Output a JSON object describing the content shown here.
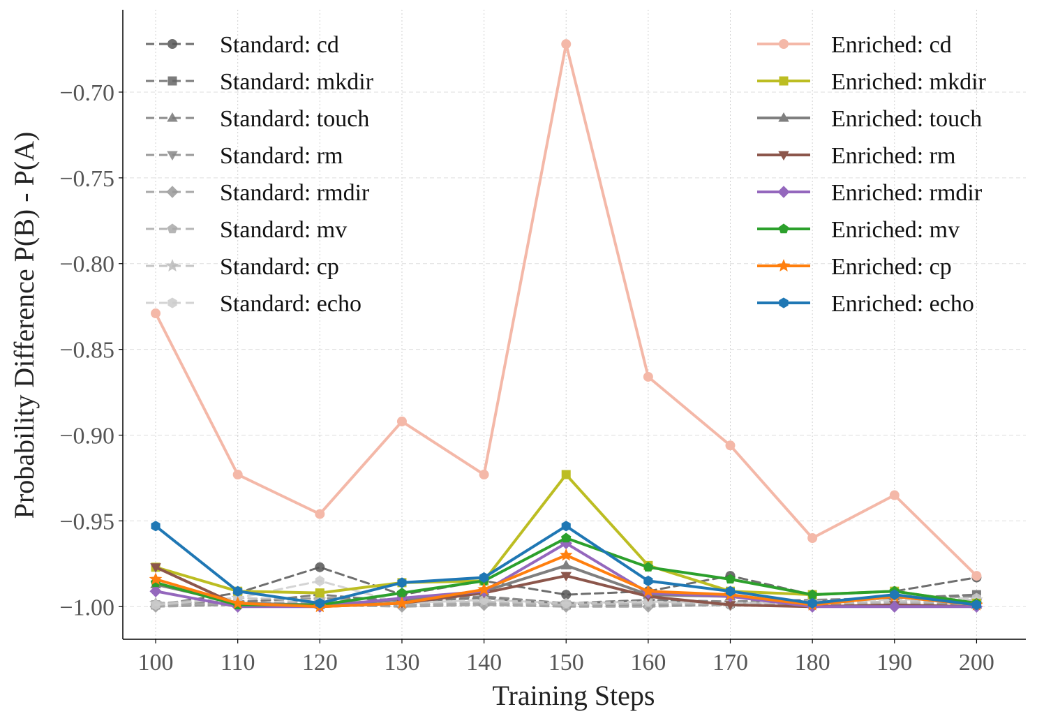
{
  "chart_data": {
    "type": "line",
    "xlabel": "Training Steps",
    "ylabel": "Probability Difference P(B) - P(A)",
    "x": [
      100,
      110,
      120,
      130,
      140,
      150,
      160,
      170,
      180,
      190,
      200
    ],
    "xticks": [
      "100",
      "110",
      "120",
      "130",
      "140",
      "150",
      "160",
      "170",
      "180",
      "190",
      "200"
    ],
    "yticks": [
      "−0.70",
      "−0.75",
      "−0.80",
      "−0.85",
      "−0.90",
      "−0.95",
      "−1.00"
    ],
    "ytick_values": [
      -0.7,
      -0.75,
      -0.8,
      -0.85,
      -0.9,
      -0.95,
      -1.0
    ],
    "xlim": [
      96,
      206
    ],
    "ylim": [
      -1.019,
      -0.652
    ],
    "grid": true,
    "legend_placement": [
      "top-left",
      "top-right"
    ],
    "series": [
      {
        "name": "Standard: cd",
        "group": "standard",
        "color": "#555555",
        "dash": "dashed",
        "marker": "circle",
        "values": [
          -0.999,
          -0.992,
          -0.977,
          -0.993,
          -0.985,
          -0.993,
          -0.991,
          -0.982,
          -0.993,
          -0.991,
          -0.983
        ]
      },
      {
        "name": "Standard: mkdir",
        "group": "standard",
        "color": "#666666",
        "dash": "dashed",
        "marker": "square",
        "values": [
          -0.999,
          -0.998,
          -0.993,
          -0.997,
          -0.995,
          -0.999,
          -0.996,
          -0.998,
          -0.997,
          -0.995,
          -0.993
        ]
      },
      {
        "name": "Standard: touch",
        "group": "standard",
        "color": "#777777",
        "dash": "dashed",
        "marker": "triangle-up",
        "values": [
          -0.998,
          -0.997,
          -0.995,
          -0.996,
          -0.994,
          -0.998,
          -0.996,
          -0.997,
          -0.996,
          -0.995,
          -0.994
        ]
      },
      {
        "name": "Standard: rm",
        "group": "standard",
        "color": "#888888",
        "dash": "dashed",
        "marker": "triangle-down",
        "values": [
          -0.999,
          -0.999,
          -0.998,
          -0.999,
          -0.998,
          -0.999,
          -0.999,
          -0.999,
          -0.999,
          -0.999,
          -0.998
        ]
      },
      {
        "name": "Standard: rmdir",
        "group": "standard",
        "color": "#999999",
        "dash": "dashed",
        "marker": "diamond",
        "values": [
          -1.0,
          -0.999,
          -0.999,
          -1.0,
          -0.999,
          -1.0,
          -1.0,
          -0.999,
          -0.999,
          -0.999,
          -0.998
        ]
      },
      {
        "name": "Standard: mv",
        "group": "standard",
        "color": "#aaaaaa",
        "dash": "dashed",
        "marker": "pentagon",
        "values": [
          -0.999,
          -0.998,
          -0.997,
          -0.999,
          -0.998,
          -0.999,
          -0.998,
          -0.999,
          -0.998,
          -0.998,
          -0.997
        ]
      },
      {
        "name": "Standard: cp",
        "group": "standard",
        "color": "#bbbbbb",
        "dash": "dashed",
        "marker": "star",
        "values": [
          -0.998,
          -0.995,
          -0.996,
          -0.998,
          -0.997,
          -0.999,
          -0.998,
          -0.998,
          -0.998,
          -0.997,
          -0.996
        ]
      },
      {
        "name": "Standard: echo",
        "group": "standard",
        "color": "#cccccc",
        "dash": "dashed",
        "marker": "hexagon",
        "values": [
          -0.999,
          -0.995,
          -0.985,
          -0.998,
          -0.996,
          -0.998,
          -0.997,
          -0.998,
          -0.997,
          -0.996,
          -0.995
        ]
      },
      {
        "name": "Enriched: cd",
        "group": "enriched",
        "color": "#f4b8a8",
        "dash": "solid",
        "marker": "circle",
        "values": [
          -0.829,
          -0.923,
          -0.946,
          -0.892,
          -0.923,
          -0.672,
          -0.866,
          -0.906,
          -0.96,
          -0.935,
          -0.982
        ]
      },
      {
        "name": "Enriched: mkdir",
        "group": "enriched",
        "color": "#bcbd22",
        "dash": "solid",
        "marker": "square",
        "values": [
          -0.977,
          -0.991,
          -0.992,
          -0.986,
          -0.985,
          -0.923,
          -0.976,
          -0.991,
          -0.993,
          -0.991,
          -0.998
        ]
      },
      {
        "name": "Enriched: touch",
        "group": "enriched",
        "color": "#7f7f7f",
        "dash": "solid",
        "marker": "triangle-up",
        "values": [
          -0.987,
          -0.998,
          -0.999,
          -0.996,
          -0.991,
          -0.976,
          -0.993,
          -0.994,
          -0.998,
          -0.994,
          -0.999
        ]
      },
      {
        "name": "Enriched: rm",
        "group": "enriched",
        "color": "#8c564b",
        "dash": "solid",
        "marker": "triangle-down",
        "values": [
          -0.977,
          -0.999,
          -1.0,
          -0.998,
          -0.992,
          -0.982,
          -0.994,
          -0.999,
          -1.0,
          -0.999,
          -1.0
        ]
      },
      {
        "name": "Enriched: rmdir",
        "group": "enriched",
        "color": "#9467bd",
        "dash": "solid",
        "marker": "diamond",
        "values": [
          -0.991,
          -1.0,
          -1.0,
          -0.995,
          -0.991,
          -0.963,
          -0.992,
          -0.994,
          -1.0,
          -1.0,
          -1.0
        ]
      },
      {
        "name": "Enriched: mv",
        "group": "enriched",
        "color": "#2ca02c",
        "dash": "solid",
        "marker": "pentagon",
        "values": [
          -0.986,
          -0.999,
          -0.999,
          -0.992,
          -0.985,
          -0.96,
          -0.977,
          -0.984,
          -0.993,
          -0.991,
          -0.998
        ]
      },
      {
        "name": "Enriched: cp",
        "group": "enriched",
        "color": "#ff7f0e",
        "dash": "solid",
        "marker": "star",
        "values": [
          -0.984,
          -0.998,
          -1.0,
          -0.998,
          -0.99,
          -0.97,
          -0.991,
          -0.993,
          -0.999,
          -0.994,
          -0.999
        ]
      },
      {
        "name": "Enriched: echo",
        "group": "enriched",
        "color": "#1f77b4",
        "dash": "solid",
        "marker": "hexagon",
        "values": [
          -0.953,
          -0.991,
          -0.998,
          -0.986,
          -0.983,
          -0.953,
          -0.985,
          -0.991,
          -0.998,
          -0.993,
          -0.999
        ]
      }
    ]
  }
}
